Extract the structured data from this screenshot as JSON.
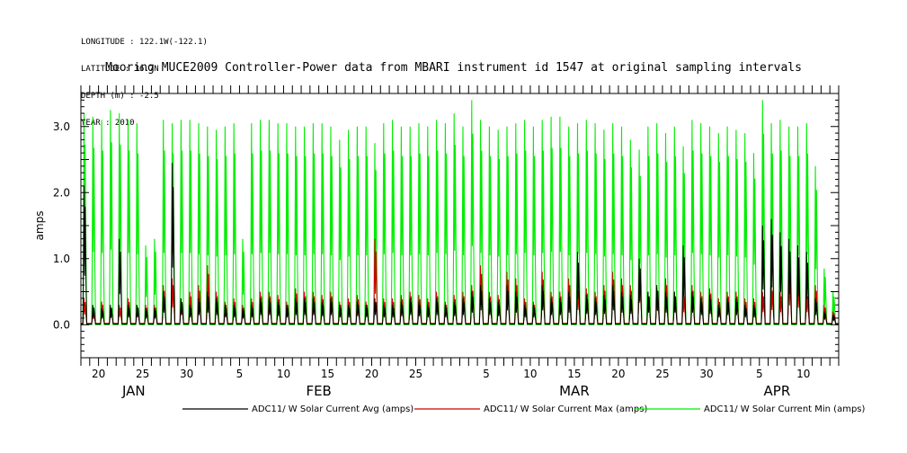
{
  "metadata": {
    "longitude": "LONGITUDE : 122.1W(-122.1)",
    "latitude": "LATITUDE : 36.7N",
    "depth": "DEPTH (m) : -2.5",
    "year": "YEAR : 2010"
  },
  "chart_data": {
    "type": "line",
    "title": "Mooring MUCE2009 Controller-Power data from MBARI instrument id 1547 at original sampling intervals",
    "xlabel": "",
    "ylabel": "amps",
    "ylim": [
      -0.5,
      3.5
    ],
    "x_range": [
      "2010-01-18",
      "2010-04-14"
    ],
    "y_ticks": [
      "3.0",
      "2.0",
      "1.0",
      "0.0"
    ],
    "y_tick_values": [
      3.0,
      2.0,
      1.0,
      0.0
    ],
    "x_day_ticks": [
      {
        "date": "2010-01-20",
        "label": "20"
      },
      {
        "date": "2010-01-25",
        "label": "25"
      },
      {
        "date": "2010-01-30",
        "label": "30"
      },
      {
        "date": "2010-02-05",
        "label": "5"
      },
      {
        "date": "2010-02-10",
        "label": "10"
      },
      {
        "date": "2010-02-15",
        "label": "15"
      },
      {
        "date": "2010-02-20",
        "label": "20"
      },
      {
        "date": "2010-02-25",
        "label": "25"
      },
      {
        "date": "2010-03-05",
        "label": "5"
      },
      {
        "date": "2010-03-10",
        "label": "10"
      },
      {
        "date": "2010-03-15",
        "label": "15"
      },
      {
        "date": "2010-03-20",
        "label": "20"
      },
      {
        "date": "2010-03-25",
        "label": "25"
      },
      {
        "date": "2010-03-30",
        "label": "30"
      },
      {
        "date": "2010-04-05",
        "label": "5"
      },
      {
        "date": "2010-04-10",
        "label": "10"
      }
    ],
    "x_month_labels": [
      {
        "date": "2010-01-24",
        "label": "JAN"
      },
      {
        "date": "2010-02-14",
        "label": "FEB"
      },
      {
        "date": "2010-03-15",
        "label": "MAR"
      },
      {
        "date": "2010-04-07",
        "label": "APR"
      }
    ],
    "grid": false,
    "legend_position": "bottom",
    "series": [
      {
        "name": "ADC11/ W Solar Current Avg (amps)",
        "color": "#000000"
      },
      {
        "name": "ADC11/ W Solar Current Max (amps)",
        "color": "#cc0000"
      },
      {
        "name": "ADC11/ W Solar Current Min (amps)",
        "color": "#00ee00"
      }
    ],
    "daily_peaks": {
      "dates": [
        "2010-01-18",
        "2010-01-19",
        "2010-01-20",
        "2010-01-21",
        "2010-01-22",
        "2010-01-23",
        "2010-01-24",
        "2010-01-25",
        "2010-01-26",
        "2010-01-27",
        "2010-01-28",
        "2010-01-29",
        "2010-01-30",
        "2010-01-31",
        "2010-02-01",
        "2010-02-02",
        "2010-02-03",
        "2010-02-04",
        "2010-02-05",
        "2010-02-06",
        "2010-02-07",
        "2010-02-08",
        "2010-02-09",
        "2010-02-10",
        "2010-02-11",
        "2010-02-12",
        "2010-02-13",
        "2010-02-14",
        "2010-02-15",
        "2010-02-16",
        "2010-02-17",
        "2010-02-18",
        "2010-02-19",
        "2010-02-20",
        "2010-02-21",
        "2010-02-22",
        "2010-02-23",
        "2010-02-24",
        "2010-02-25",
        "2010-02-26",
        "2010-02-27",
        "2010-02-28",
        "2010-03-01",
        "2010-03-02",
        "2010-03-03",
        "2010-03-04",
        "2010-03-05",
        "2010-03-06",
        "2010-03-07",
        "2010-03-08",
        "2010-03-09",
        "2010-03-10",
        "2010-03-11",
        "2010-03-12",
        "2010-03-13",
        "2010-03-14",
        "2010-03-15",
        "2010-03-16",
        "2010-03-17",
        "2010-03-18",
        "2010-03-19",
        "2010-03-20",
        "2010-03-21",
        "2010-03-22",
        "2010-03-23",
        "2010-03-24",
        "2010-03-25",
        "2010-03-26",
        "2010-03-27",
        "2010-03-28",
        "2010-03-29",
        "2010-03-30",
        "2010-03-31",
        "2010-04-01",
        "2010-04-02",
        "2010-04-03",
        "2010-04-04",
        "2010-04-05",
        "2010-04-06",
        "2010-04-07",
        "2010-04-08",
        "2010-04-09",
        "2010-04-10",
        "2010-04-11",
        "2010-04-12",
        "2010-04-13"
      ],
      "green": [
        3.2,
        3.15,
        3.1,
        3.25,
        3.2,
        3.1,
        3.05,
        1.2,
        1.3,
        3.1,
        3.05,
        3.1,
        3.1,
        3.05,
        3.0,
        2.95,
        3.0,
        3.05,
        1.3,
        3.05,
        3.1,
        3.1,
        3.05,
        3.05,
        3.0,
        3.0,
        3.05,
        3.05,
        3.0,
        2.8,
        2.95,
        3.0,
        3.0,
        2.75,
        3.05,
        3.1,
        3.0,
        3.0,
        3.05,
        3.0,
        3.1,
        3.05,
        3.2,
        3.0,
        3.4,
        3.1,
        3.0,
        2.95,
        3.0,
        3.05,
        3.1,
        3.0,
        3.1,
        3.15,
        3.15,
        3.0,
        3.05,
        3.1,
        3.05,
        2.95,
        3.05,
        3.0,
        2.8,
        2.65,
        3.0,
        3.05,
        2.9,
        3.0,
        2.7,
        3.1,
        3.05,
        3.0,
        2.9,
        3.0,
        2.95,
        2.9,
        2.6,
        3.4,
        3.05,
        3.1,
        3.0,
        3.0,
        3.05,
        2.4,
        0.85,
        0.5
      ],
      "red": [
        0.4,
        0.2,
        0.35,
        0.25,
        0.3,
        0.4,
        0.3,
        0.3,
        0.3,
        0.6,
        0.7,
        0.4,
        0.5,
        0.6,
        0.9,
        0.5,
        0.35,
        0.4,
        0.3,
        0.4,
        0.5,
        0.5,
        0.45,
        0.35,
        0.55,
        0.5,
        0.5,
        0.45,
        0.5,
        0.35,
        0.4,
        0.45,
        0.35,
        1.3,
        0.4,
        0.4,
        0.45,
        0.5,
        0.45,
        0.4,
        0.5,
        0.35,
        0.45,
        0.5,
        0.6,
        0.9,
        0.5,
        0.45,
        0.8,
        0.7,
        0.4,
        0.35,
        0.8,
        0.5,
        0.5,
        0.7,
        0.6,
        0.55,
        0.5,
        0.6,
        0.8,
        0.7,
        0.6,
        0.9,
        0.5,
        0.55,
        0.7,
        0.5,
        0.5,
        0.6,
        0.5,
        0.55,
        0.4,
        0.5,
        0.5,
        0.4,
        0.4,
        0.5,
        0.6,
        0.5,
        0.8,
        0.7,
        0.5,
        0.6,
        0.3,
        0.2
      ],
      "black": [
        2.1,
        0.3,
        0.25,
        0.3,
        1.3,
        0.3,
        0.3,
        0.25,
        0.25,
        0.5,
        2.45,
        0.4,
        0.3,
        0.4,
        0.5,
        0.4,
        0.3,
        0.3,
        0.25,
        0.3,
        0.4,
        0.4,
        0.35,
        0.3,
        0.4,
        0.4,
        0.4,
        0.35,
        0.4,
        0.3,
        0.3,
        0.35,
        0.3,
        0.4,
        0.3,
        0.3,
        0.35,
        0.4,
        0.35,
        0.3,
        0.4,
        0.3,
        0.35,
        0.4,
        0.5,
        0.6,
        0.4,
        0.35,
        0.6,
        0.5,
        0.3,
        0.3,
        0.6,
        0.4,
        0.4,
        0.5,
        1.1,
        0.45,
        0.4,
        0.45,
        0.6,
        0.5,
        0.45,
        1.0,
        0.5,
        0.6,
        0.5,
        0.5,
        1.2,
        0.5,
        0.4,
        0.45,
        0.3,
        0.4,
        0.4,
        0.3,
        0.3,
        1.5,
        1.6,
        1.4,
        1.3,
        1.2,
        1.1,
        0.4,
        0.2,
        0.15
      ]
    }
  }
}
